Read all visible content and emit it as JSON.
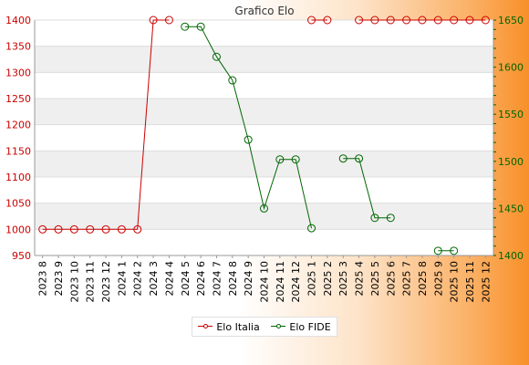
{
  "chart_data": {
    "type": "line",
    "title": "Grafico Elo",
    "categories": [
      "2023 8",
      "2023 9",
      "2023 10",
      "2023 11",
      "2023 12",
      "2024 1",
      "2024 2",
      "2024 3",
      "2024 4",
      "2024 5",
      "2024 6",
      "2024 7",
      "2024 8",
      "2024 9",
      "2024 10",
      "2024 11",
      "2024 12",
      "2025 1",
      "2025 2",
      "2025 3",
      "2025 4",
      "2025 5",
      "2025 6",
      "2025 7",
      "2025 8",
      "2025 9",
      "2025 10",
      "2025 11",
      "2025 12"
    ],
    "left_axis": {
      "min": 950,
      "max": 1400,
      "ticks": [
        950,
        1000,
        1050,
        1100,
        1150,
        1200,
        1250,
        1300,
        1350,
        1400
      ],
      "color": "#cc0000"
    },
    "right_axis": {
      "min": 1400,
      "max": 1650,
      "ticks": [
        1400,
        1450,
        1500,
        1550,
        1600,
        1650
      ],
      "color": "#006600"
    },
    "grid": true,
    "legend_position": "bottom",
    "series": [
      {
        "name": "Elo Italia",
        "axis": "left",
        "color": "#cc0000",
        "values": [
          1000,
          1000,
          1000,
          1000,
          1000,
          1000,
          1000,
          1400,
          1400,
          null,
          null,
          null,
          null,
          null,
          null,
          null,
          null,
          1400,
          1400,
          null,
          1400,
          1400,
          1400,
          1400,
          1400,
          1400,
          1400,
          1400,
          1400
        ]
      },
      {
        "name": "Elo FIDE",
        "axis": "right",
        "color": "#006600",
        "values": [
          null,
          null,
          null,
          null,
          null,
          null,
          null,
          null,
          null,
          1643,
          1643,
          1611,
          1586,
          1523,
          1450,
          1502,
          1502,
          1429,
          null,
          1503,
          1503,
          1440,
          1440,
          null,
          null,
          1405,
          1405,
          null,
          null
        ]
      }
    ]
  }
}
